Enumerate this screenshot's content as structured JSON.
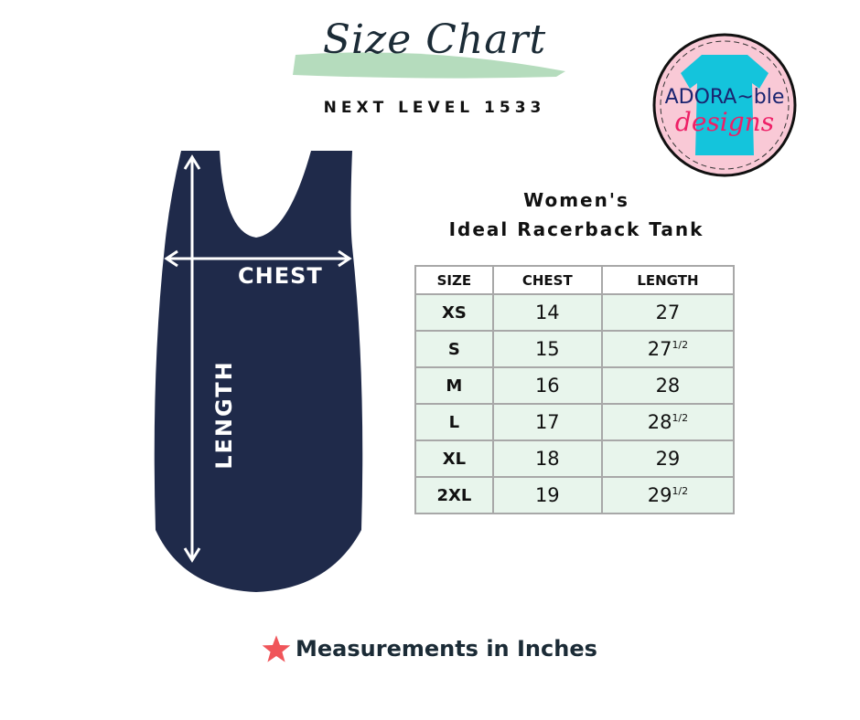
{
  "header": {
    "title": "Size Chart",
    "subtitle": "NEXT LEVEL 1533"
  },
  "logo": {
    "text_top": "ADORA~ble",
    "text_bottom": "designs"
  },
  "product": {
    "line1": "Women's",
    "line2": "Ideal Racerback Tank"
  },
  "garment": {
    "chest_label": "CHEST",
    "length_label": "LENGTH"
  },
  "table": {
    "headers": [
      "SIZE",
      "CHEST",
      "LENGTH"
    ],
    "rows": [
      {
        "size": "XS",
        "chest": "14",
        "length": "27",
        "frac": ""
      },
      {
        "size": "S",
        "chest": "15",
        "length": "27",
        "frac": "1/2"
      },
      {
        "size": "M",
        "chest": "16",
        "length": "28",
        "frac": ""
      },
      {
        "size": "L",
        "chest": "17",
        "length": "28",
        "frac": "1/2"
      },
      {
        "size": "XL",
        "chest": "18",
        "length": "29",
        "frac": ""
      },
      {
        "size": "2XL",
        "chest": "19",
        "length": "29",
        "frac": "1/2"
      }
    ]
  },
  "footer": {
    "note": "Measurements in Inches",
    "icon": "star-icon"
  },
  "colors": {
    "navy": "#1f2a4a",
    "brush": "#b5dcbd",
    "row_bg": "#e8f5ec",
    "star": "#f0555a",
    "logo_bg": "#f9c9d6",
    "logo_shirt": "#14c4dc"
  }
}
